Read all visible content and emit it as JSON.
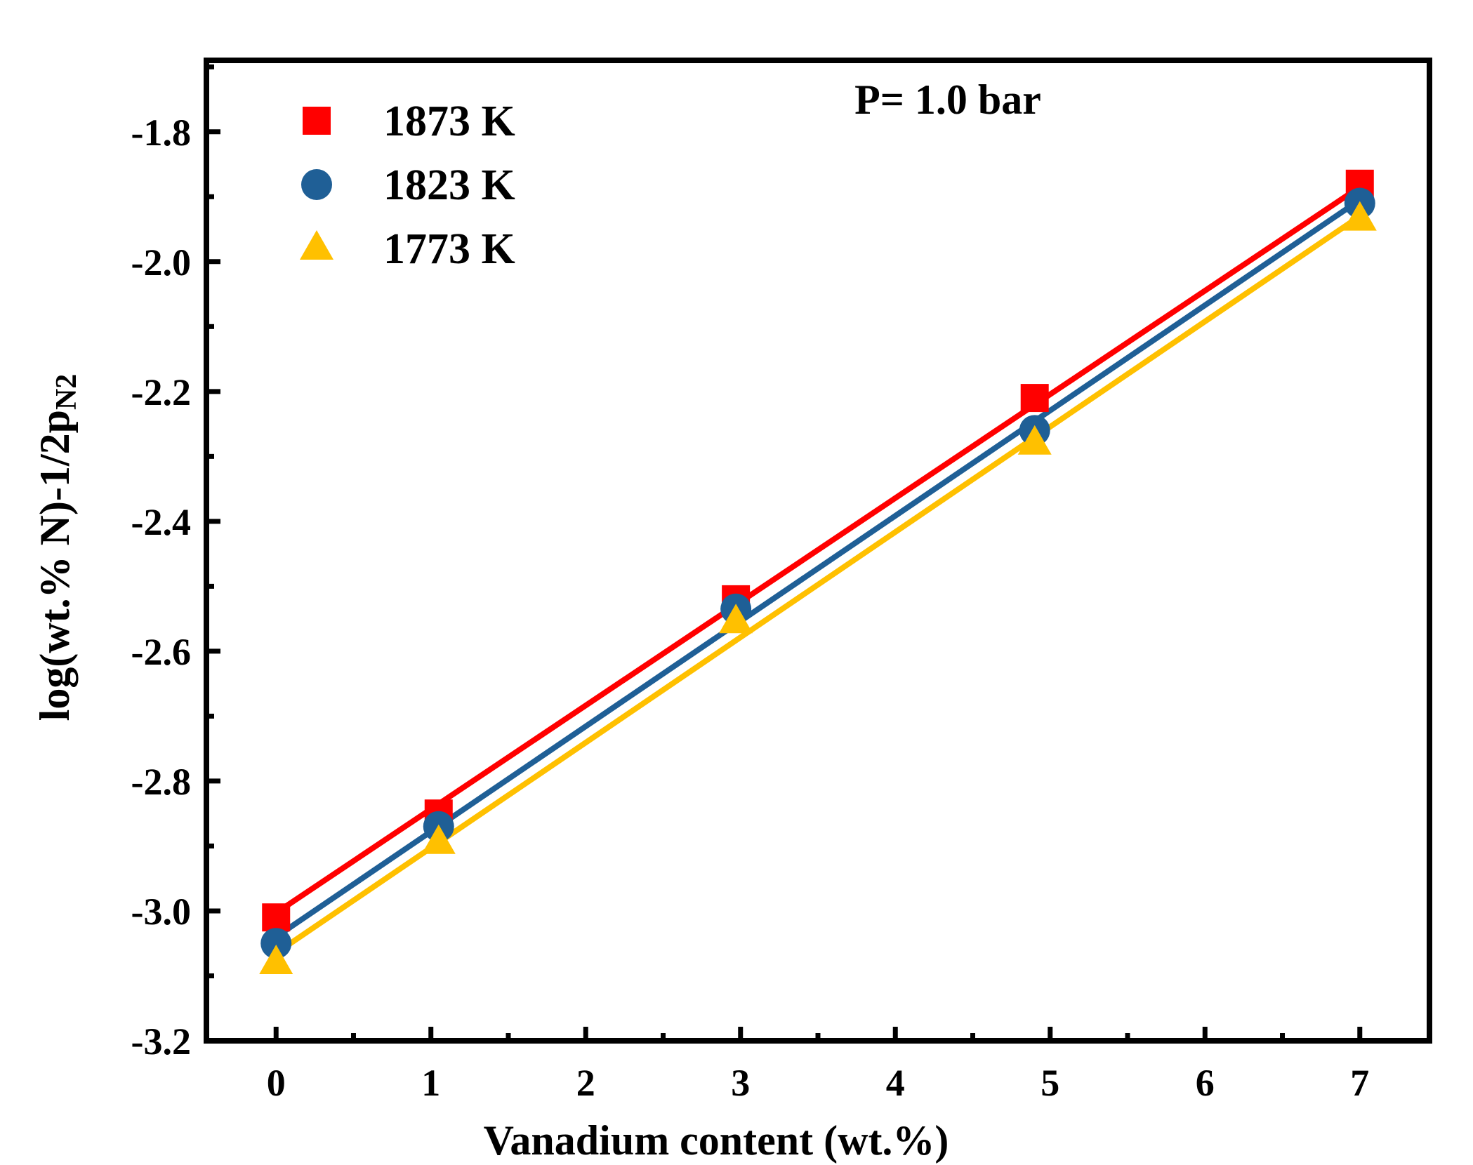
{
  "chart_data": {
    "type": "scatter",
    "title": "",
    "annotation": "P= 1.0 bar",
    "xlabel": "Vanadium content (wt.%)",
    "ylabel": {
      "main": "log(wt.% N)-1/2p",
      "subscript": "N2"
    },
    "xlim": [
      -0.45,
      7.45
    ],
    "ylim": [
      -3.2,
      -1.69
    ],
    "xticks": [
      0,
      1,
      2,
      3,
      4,
      5,
      6,
      7
    ],
    "xtick_labels": [
      "0",
      "1",
      "2",
      "3",
      "4",
      "5",
      "6",
      "7"
    ],
    "yticks": [
      -3.2,
      -3.0,
      -2.8,
      -2.6,
      -2.4,
      -2.2,
      -2.0,
      -1.8
    ],
    "ytick_labels": [
      "-3.2",
      "-3.0",
      "-2.8",
      "-2.6",
      "-2.4",
      "-2.2",
      "-2.0",
      "-1.8"
    ],
    "grid": false,
    "legend_position": "top-left",
    "series": [
      {
        "name": "1873 K",
        "marker": "square",
        "color": "#ff0000",
        "x": [
          0,
          1.05,
          2.97,
          4.9,
          7.0
        ],
        "y": [
          -3.01,
          -2.85,
          -2.52,
          -2.21,
          -1.88
        ],
        "fit": [
          [
            0,
            -3.003
          ],
          [
            7.0,
            -1.885
          ]
        ]
      },
      {
        "name": "1823 K",
        "marker": "circle",
        "color": "#1f5f96",
        "x": [
          0,
          1.05,
          2.97,
          4.9,
          7.0
        ],
        "y": [
          -3.05,
          -2.87,
          -2.535,
          -2.26,
          -1.91
        ],
        "fit": [
          [
            0,
            -3.04
          ],
          [
            7.0,
            -1.905
          ]
        ]
      },
      {
        "name": "1773 K",
        "marker": "triangle",
        "color": "#ffc000",
        "x": [
          0,
          1.05,
          2.97,
          4.9,
          7.0
        ],
        "y": [
          -3.08,
          -2.895,
          -2.555,
          -2.28,
          -1.935
        ],
        "fit": [
          [
            0,
            -3.065
          ],
          [
            7.0,
            -1.93
          ]
        ]
      }
    ]
  }
}
